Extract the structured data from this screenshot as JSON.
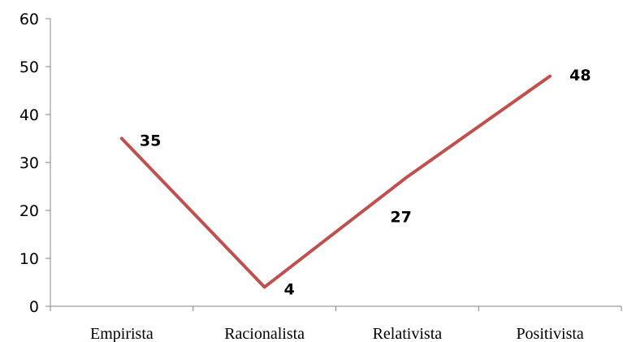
{
  "chart_data": {
    "type": "line",
    "categories": [
      "Empirista",
      "Racionalista",
      "Relativista",
      "Positivista"
    ],
    "series": [
      {
        "values": [
          35,
          4,
          27,
          48
        ]
      }
    ],
    "data_labels": [
      "35",
      "4",
      "27",
      "48"
    ],
    "y_ticks": [
      "0",
      "10",
      "20",
      "30",
      "40",
      "50",
      "60"
    ],
    "ylim": [
      0,
      60
    ],
    "title": "",
    "xlabel": "",
    "ylabel": "",
    "grid": false,
    "legend": "none",
    "line_color": "#C0504D"
  }
}
